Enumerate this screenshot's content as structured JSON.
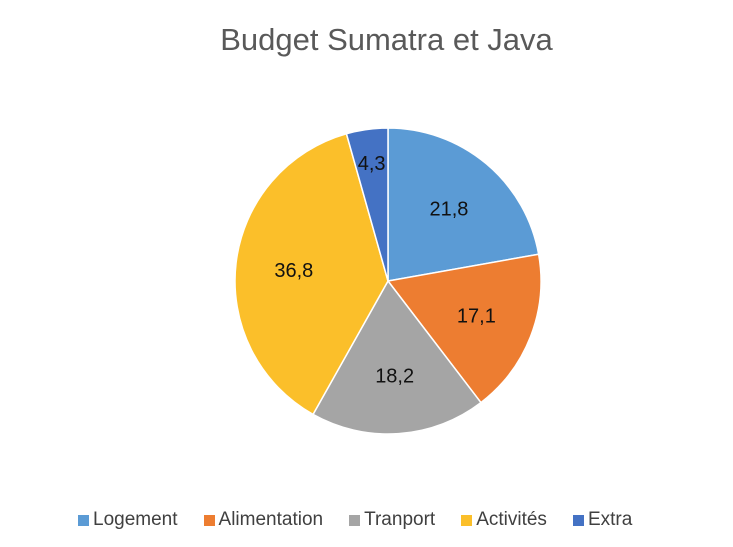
{
  "chart_data": {
    "type": "pie",
    "title": "Budget Sumatra et Java",
    "categories": [
      "Logement",
      "Alimentation",
      "Tranport",
      "Activités",
      "Extra"
    ],
    "values": [
      21.8,
      17.1,
      18.2,
      36.8,
      4.3
    ],
    "labels": [
      "21,8",
      "17,1",
      "18,2",
      "36,8",
      "4,3"
    ],
    "colors": [
      "#5B9BD5",
      "#ED7D31",
      "#A5A5A5",
      "#FFC000",
      "#4472C4"
    ],
    "legend_position": "bottom",
    "start_angle_deg": 0,
    "direction": "clockwise"
  },
  "legend": {
    "items": [
      {
        "label": "Logement",
        "color": "#5B9BD5"
      },
      {
        "label": "Alimentation",
        "color": "#ED7D31"
      },
      {
        "label": "Tranport",
        "color": "#A5A5A5"
      },
      {
        "label": "Activités",
        "color": "#FBBF2A"
      },
      {
        "label": "Extra",
        "color": "#4472C4"
      }
    ]
  }
}
